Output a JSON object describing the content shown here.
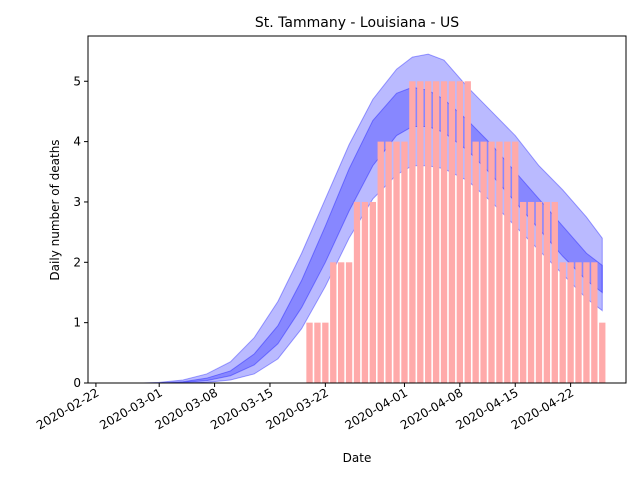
{
  "chart_data": {
    "type": "bar",
    "title": "St. Tammany - Louisiana - US",
    "xlabel": "Date",
    "ylabel": "Daily number of deaths",
    "ylim": [
      0,
      5.75
    ],
    "xlim": [
      "2020-02-21",
      "2020-04-29"
    ],
    "grid": false,
    "y_ticks": [
      "0",
      "1",
      "2",
      "3",
      "4",
      "5"
    ],
    "x_ticks": [
      "2020-02-22",
      "2020-03-01",
      "2020-03-08",
      "2020-03-15",
      "2020-03-22",
      "2020-04-01",
      "2020-04-08",
      "2020-04-15",
      "2020-04-22"
    ],
    "bars": {
      "color": "#ffaaaa",
      "dates": [
        "2020-03-20",
        "2020-03-21",
        "2020-03-22",
        "2020-03-23",
        "2020-03-24",
        "2020-03-25",
        "2020-03-26",
        "2020-03-27",
        "2020-03-28",
        "2020-03-29",
        "2020-03-30",
        "2020-03-31",
        "2020-04-01",
        "2020-04-02",
        "2020-04-03",
        "2020-04-04",
        "2020-04-05",
        "2020-04-06",
        "2020-04-07",
        "2020-04-08",
        "2020-04-09",
        "2020-04-10",
        "2020-04-11",
        "2020-04-12",
        "2020-04-13",
        "2020-04-14",
        "2020-04-15",
        "2020-04-16",
        "2020-04-17",
        "2020-04-18",
        "2020-04-19",
        "2020-04-20",
        "2020-04-21",
        "2020-04-22",
        "2020-04-23",
        "2020-04-24",
        "2020-04-25",
        "2020-04-26"
      ],
      "values": [
        1,
        1,
        1,
        2,
        2,
        2,
        3,
        3,
        3,
        4,
        4,
        4,
        4,
        5,
        5,
        5,
        5,
        5,
        5,
        5,
        5,
        4,
        4,
        4,
        4,
        4,
        4,
        3,
        3,
        3,
        3,
        3,
        2,
        2,
        2,
        2,
        2,
        1
      ]
    },
    "bands": [
      {
        "color": "#0000ff",
        "opacity": 0.27,
        "dates": [
          "2020-02-28",
          "2020-03-01",
          "2020-03-04",
          "2020-03-07",
          "2020-03-10",
          "2020-03-13",
          "2020-03-16",
          "2020-03-19",
          "2020-03-22",
          "2020-03-25",
          "2020-03-28",
          "2020-03-31",
          "2020-04-02",
          "2020-04-04",
          "2020-04-06",
          "2020-04-09",
          "2020-04-12",
          "2020-04-15",
          "2020-04-18",
          "2020-04-21",
          "2020-04-24",
          "2020-04-26"
        ],
        "lower": [
          0,
          0,
          0,
          0.01,
          0.05,
          0.15,
          0.4,
          0.9,
          1.6,
          2.4,
          3.05,
          3.45,
          3.6,
          3.6,
          3.55,
          3.35,
          3.0,
          2.6,
          2.2,
          1.8,
          1.4,
          1.2
        ],
        "upper": [
          0,
          0.01,
          0.05,
          0.15,
          0.35,
          0.75,
          1.35,
          2.15,
          3.05,
          3.95,
          4.7,
          5.2,
          5.4,
          5.45,
          5.35,
          4.9,
          4.5,
          4.1,
          3.6,
          3.2,
          2.75,
          2.4
        ]
      },
      {
        "color": "#0000ff",
        "opacity": 0.27,
        "dates": [
          "2020-02-28",
          "2020-03-01",
          "2020-03-04",
          "2020-03-07",
          "2020-03-10",
          "2020-03-13",
          "2020-03-16",
          "2020-03-19",
          "2020-03-22",
          "2020-03-25",
          "2020-03-28",
          "2020-03-31",
          "2020-04-02",
          "2020-04-04",
          "2020-04-06",
          "2020-04-09",
          "2020-04-12",
          "2020-04-15",
          "2020-04-18",
          "2020-04-21",
          "2020-04-24",
          "2020-04-26"
        ],
        "lower": [
          0,
          0,
          0.01,
          0.04,
          0.12,
          0.3,
          0.65,
          1.25,
          2.0,
          2.85,
          3.6,
          4.1,
          4.25,
          4.25,
          4.15,
          3.85,
          3.45,
          3.0,
          2.55,
          2.1,
          1.7,
          1.5
        ],
        "upper": [
          0,
          0,
          0.02,
          0.08,
          0.2,
          0.48,
          0.95,
          1.7,
          2.6,
          3.55,
          4.35,
          4.8,
          4.9,
          4.85,
          4.7,
          4.35,
          3.95,
          3.5,
          3.05,
          2.6,
          2.15,
          1.95
        ]
      }
    ]
  }
}
